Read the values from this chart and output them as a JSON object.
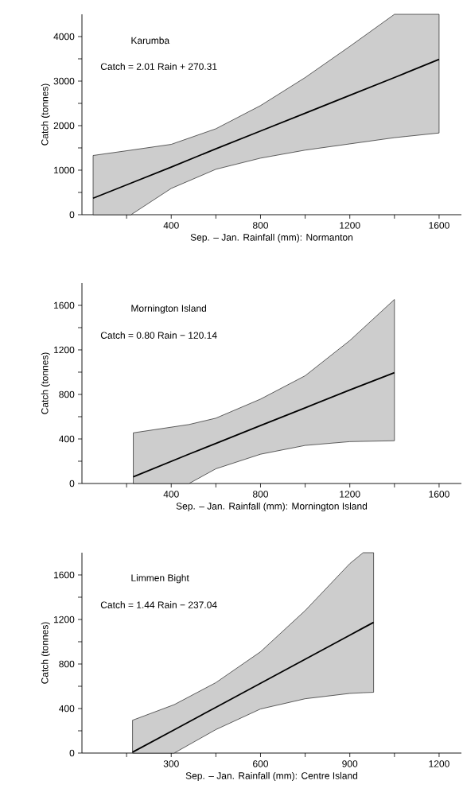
{
  "chart_data": [
    {
      "type": "line",
      "title": "Karumba",
      "annotations": [
        "Catch = 2.01 Rain + 270.31"
      ],
      "xlabel": "Sep. – Jan. Rainfall (mm): Normanton",
      "ylabel": "Catch (tonnes)",
      "xlim": [
        0,
        1700
      ],
      "ylim": [
        0,
        4500
      ],
      "xticks": [
        {
          "value": 200,
          "label": null
        },
        400,
        {
          "value": 600,
          "label": null
        },
        800,
        {
          "value": 1000,
          "label": null
        },
        1200,
        {
          "value": 1400,
          "label": null
        },
        1600
      ],
      "yticks": [
        0,
        {
          "value": 500,
          "label": null
        },
        1000,
        {
          "value": 1500,
          "label": null
        },
        2000,
        {
          "value": 2500,
          "label": null
        },
        3000,
        {
          "value": 3500,
          "label": null
        },
        4000
      ],
      "series": [
        {
          "color": "#000000",
          "x": [
            50,
            220,
            400,
            600,
            800,
            1000,
            1200,
            1400,
            1600
          ],
          "values": [
            370,
            710,
            1070,
            1480,
            1880,
            2280,
            2680,
            3080,
            3490
          ],
          "lower": [
            0,
            0,
            590,
            1020,
            1270,
            1450,
            1590,
            1730,
            1835
          ],
          "upper": [
            1330,
            1450,
            1580,
            1930,
            2450,
            3080,
            3780,
            4500,
            4500
          ]
        }
      ]
    },
    {
      "type": "line",
      "title": "Mornington Island",
      "annotations": [
        "Catch = 0.80 Rain − 120.14"
      ],
      "xlabel": "Sep. – Jan. Rainfall (mm): Mornington Island",
      "ylabel": "Catch (tonnes)",
      "xlim": [
        0,
        1700
      ],
      "ylim": [
        0,
        1800
      ],
      "xticks": [
        {
          "value": 200,
          "label": null
        },
        400,
        {
          "value": 600,
          "label": null
        },
        800,
        {
          "value": 1000,
          "label": null
        },
        1200,
        {
          "value": 1400,
          "label": null
        },
        1600
      ],
      "yticks": [
        0,
        {
          "value": 200,
          "label": null
        },
        400,
        {
          "value": 600,
          "label": null
        },
        800,
        {
          "value": 1000,
          "label": null
        },
        1200,
        {
          "value": 1400,
          "label": null
        },
        1600
      ],
      "series": [
        {
          "color": "#000000",
          "x": [
            230,
            480,
            600,
            800,
            1000,
            1200,
            1400
          ],
          "values": [
            60,
            264,
            360,
            520,
            680,
            840,
            995
          ],
          "lower": [
            0,
            0,
            132,
            263,
            342,
            376,
            384
          ],
          "upper": [
            455,
            530,
            587,
            758,
            968,
            1284,
            1653
          ]
        }
      ]
    },
    {
      "type": "line",
      "title": "Limmen Bight",
      "annotations": [
        "Catch = 1.44 Rain − 237.04"
      ],
      "xlabel": "Sep. – Jan. Rainfall (mm): Centre Island",
      "ylabel": "Catch (tonnes)",
      "xlim": [
        0,
        1275
      ],
      "ylim": [
        0,
        1800
      ],
      "xticks": [
        {
          "value": 150,
          "label": null
        },
        300,
        {
          "value": 450,
          "label": null
        },
        600,
        {
          "value": 750,
          "label": null
        },
        900,
        {
          "value": 1050,
          "label": null
        },
        1200
      ],
      "yticks": [
        0,
        {
          "value": 200,
          "label": null
        },
        400,
        {
          "value": 600,
          "label": null
        },
        800,
        {
          "value": 1000,
          "label": null
        },
        1200,
        {
          "value": 1400,
          "label": null
        },
        1600
      ],
      "series": [
        {
          "color": "#000000",
          "x": [
            170,
            310,
            450,
            600,
            750,
            900,
            945,
            980
          ],
          "values": [
            8,
            209,
            411,
            627,
            843,
            1059,
            1124,
            1174
          ],
          "lower": [
            0,
            0,
            211,
            396,
            488,
            536,
            542,
            546
          ],
          "upper": [
            295,
            435,
            633,
            910,
            1280,
            1702,
            1800,
            1800
          ]
        }
      ]
    }
  ]
}
